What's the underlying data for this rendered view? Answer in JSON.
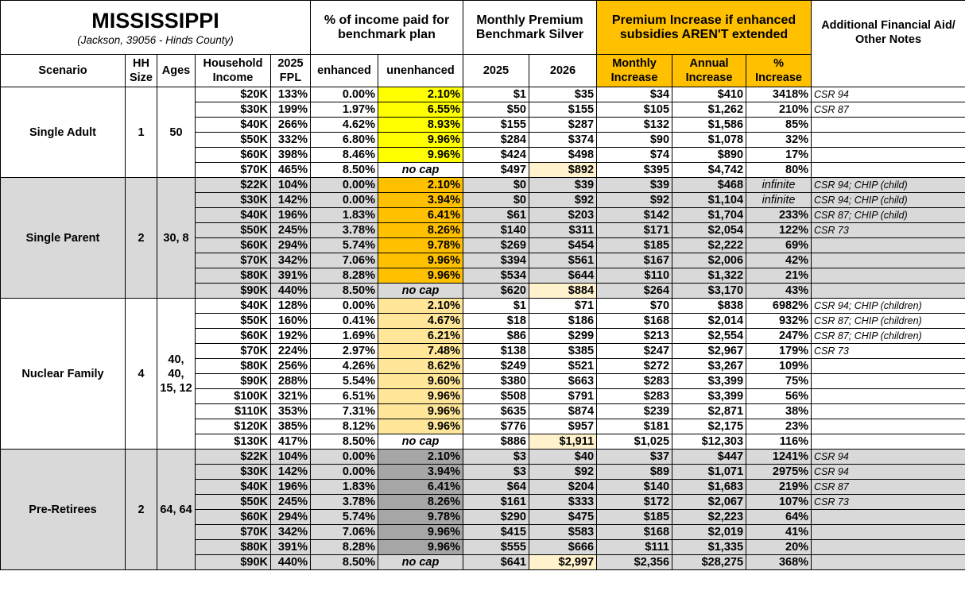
{
  "header": {
    "state": "MISSISSIPPI",
    "location": "(Jackson, 39056 - Hinds County)",
    "pct_income": "% of income paid for benchmark plan",
    "monthly_premium": "Monthly Premium Benchmark Silver",
    "premium_increase": "Premium Increase if enhanced subsidies AREN'T extended",
    "notes": "Additional Financial Aid/ Other Notes",
    "cols": {
      "scenario": "Scenario",
      "hh_size": "HH Size",
      "ages": "Ages",
      "income": "Household Income",
      "fpl": "2025 FPL",
      "enhanced": "enhanced",
      "unenhanced": "unenhanced",
      "y2025": "2025",
      "y2026": "2026",
      "monthly": "Monthly Increase",
      "annual": "Annual Increase",
      "pct": "% Increase"
    }
  },
  "colors": {
    "header_orange": "#ffc000",
    "group_grey": "#d9d9d9",
    "yellow": "#ffff00",
    "light_orange": "#ffe699",
    "dark_grey": "#a6a6a6",
    "highlight": "#fff2cc"
  },
  "groups": [
    {
      "scenario": "Single Adult",
      "hh_size": "1",
      "ages": "50",
      "rows": [
        [
          "$20K",
          "133%",
          "0.00%",
          "2.10%",
          "$1",
          "$35",
          "$34",
          "$410",
          "3418%",
          "CSR 94"
        ],
        [
          "$30K",
          "199%",
          "1.97%",
          "6.55%",
          "$50",
          "$155",
          "$105",
          "$1,262",
          "210%",
          "CSR 87"
        ],
        [
          "$40K",
          "266%",
          "4.62%",
          "8.93%",
          "$155",
          "$287",
          "$132",
          "$1,586",
          "85%",
          ""
        ],
        [
          "$50K",
          "332%",
          "6.80%",
          "9.96%",
          "$284",
          "$374",
          "$90",
          "$1,078",
          "32%",
          ""
        ],
        [
          "$60K",
          "398%",
          "8.46%",
          "9.96%",
          "$424",
          "$498",
          "$74",
          "$890",
          "17%",
          ""
        ],
        [
          "$70K",
          "465%",
          "8.50%",
          "no cap",
          "$497",
          "$892",
          "$395",
          "$4,742",
          "80%",
          ""
        ]
      ]
    },
    {
      "scenario": "Single Parent",
      "hh_size": "2",
      "ages": "30, 8",
      "rows": [
        [
          "$22K",
          "104%",
          "0.00%",
          "2.10%",
          "$0",
          "$39",
          "$39",
          "$468",
          "infinite",
          "CSR 94; CHIP (child)"
        ],
        [
          "$30K",
          "142%",
          "0.00%",
          "3.94%",
          "$0",
          "$92",
          "$92",
          "$1,104",
          "infinite",
          "CSR 94; CHIP (child)"
        ],
        [
          "$40K",
          "196%",
          "1.83%",
          "6.41%",
          "$61",
          "$203",
          "$142",
          "$1,704",
          "233%",
          "CSR 87; CHIP (child)"
        ],
        [
          "$50K",
          "245%",
          "3.78%",
          "8.26%",
          "$140",
          "$311",
          "$171",
          "$2,054",
          "122%",
          "CSR 73"
        ],
        [
          "$60K",
          "294%",
          "5.74%",
          "9.78%",
          "$269",
          "$454",
          "$185",
          "$2,222",
          "69%",
          ""
        ],
        [
          "$70K",
          "342%",
          "7.06%",
          "9.96%",
          "$394",
          "$561",
          "$167",
          "$2,006",
          "42%",
          ""
        ],
        [
          "$80K",
          "391%",
          "8.28%",
          "9.96%",
          "$534",
          "$644",
          "$110",
          "$1,322",
          "21%",
          ""
        ],
        [
          "$90K",
          "440%",
          "8.50%",
          "no cap",
          "$620",
          "$884",
          "$264",
          "$3,170",
          "43%",
          ""
        ]
      ]
    },
    {
      "scenario": "Nuclear Family",
      "hh_size": "4",
      "ages": "40, 40, 15, 12",
      "rows": [
        [
          "$40K",
          "128%",
          "0.00%",
          "2.10%",
          "$1",
          "$71",
          "$70",
          "$838",
          "6982%",
          "CSR 94; CHIP (children)"
        ],
        [
          "$50K",
          "160%",
          "0.41%",
          "4.67%",
          "$18",
          "$186",
          "$168",
          "$2,014",
          "932%",
          "CSR 87; CHIP (children)"
        ],
        [
          "$60K",
          "192%",
          "1.69%",
          "6.21%",
          "$86",
          "$299",
          "$213",
          "$2,554",
          "247%",
          "CSR 87; CHIP (children)"
        ],
        [
          "$70K",
          "224%",
          "2.97%",
          "7.48%",
          "$138",
          "$385",
          "$247",
          "$2,967",
          "179%",
          "CSR 73"
        ],
        [
          "$80K",
          "256%",
          "4.26%",
          "8.62%",
          "$249",
          "$521",
          "$272",
          "$3,267",
          "109%",
          ""
        ],
        [
          "$90K",
          "288%",
          "5.54%",
          "9.60%",
          "$380",
          "$663",
          "$283",
          "$3,399",
          "75%",
          ""
        ],
        [
          "$100K",
          "321%",
          "6.51%",
          "9.96%",
          "$508",
          "$791",
          "$283",
          "$3,399",
          "56%",
          ""
        ],
        [
          "$110K",
          "353%",
          "7.31%",
          "9.96%",
          "$635",
          "$874",
          "$239",
          "$2,871",
          "38%",
          ""
        ],
        [
          "$120K",
          "385%",
          "8.12%",
          "9.96%",
          "$776",
          "$957",
          "$181",
          "$2,175",
          "23%",
          ""
        ],
        [
          "$130K",
          "417%",
          "8.50%",
          "no cap",
          "$886",
          "$1,911",
          "$1,025",
          "$12,303",
          "116%",
          ""
        ]
      ]
    },
    {
      "scenario": "Pre-Retirees",
      "hh_size": "2",
      "ages": "64, 64",
      "rows": [
        [
          "$22K",
          "104%",
          "0.00%",
          "2.10%",
          "$3",
          "$40",
          "$37",
          "$447",
          "1241%",
          "CSR 94"
        ],
        [
          "$30K",
          "142%",
          "0.00%",
          "3.94%",
          "$3",
          "$92",
          "$89",
          "$1,071",
          "2975%",
          "CSR 94"
        ],
        [
          "$40K",
          "196%",
          "1.83%",
          "6.41%",
          "$64",
          "$204",
          "$140",
          "$1,683",
          "219%",
          "CSR 87"
        ],
        [
          "$50K",
          "245%",
          "3.78%",
          "8.26%",
          "$161",
          "$333",
          "$172",
          "$2,067",
          "107%",
          "CSR 73"
        ],
        [
          "$60K",
          "294%",
          "5.74%",
          "9.78%",
          "$290",
          "$475",
          "$185",
          "$2,223",
          "64%",
          ""
        ],
        [
          "$70K",
          "342%",
          "7.06%",
          "9.96%",
          "$415",
          "$583",
          "$168",
          "$2,019",
          "41%",
          ""
        ],
        [
          "$80K",
          "391%",
          "8.28%",
          "9.96%",
          "$555",
          "$666",
          "$111",
          "$1,335",
          "20%",
          ""
        ],
        [
          "$90K",
          "440%",
          "8.50%",
          "no cap",
          "$641",
          "$2,997",
          "$2,356",
          "$28,275",
          "368%",
          ""
        ]
      ]
    }
  ]
}
